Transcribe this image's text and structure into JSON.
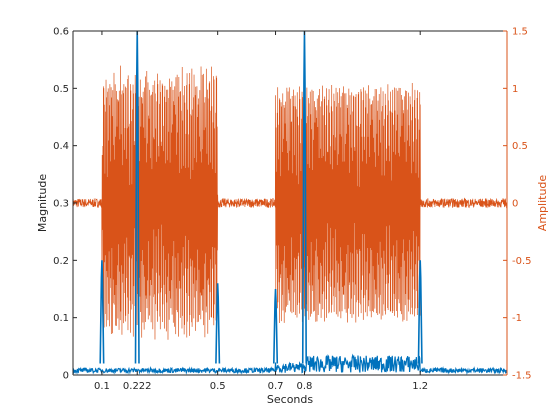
{
  "chart_data": {
    "type": "line",
    "title": "",
    "xlabel": "Seconds",
    "ylabel_left": "Magnitude",
    "ylabel_right": "Amplitude",
    "xlim": [
      0,
      1.5
    ],
    "ylim_left": [
      0,
      0.6
    ],
    "ylim_right": [
      -1.5,
      1.5
    ],
    "x_ticks": [
      0.1,
      0.222,
      0.5,
      0.7,
      0.8,
      1.2
    ],
    "x_tick_labels": [
      "0.1",
      "0.222",
      "0.5",
      "0.7",
      "0.8",
      "1.2"
    ],
    "y_left_ticks": [
      0,
      0.1,
      0.2,
      0.3,
      0.4,
      0.5,
      0.6
    ],
    "y_left_tick_labels": [
      "0",
      "0.1",
      "0.2",
      "0.3",
      "0.4",
      "0.5",
      "0.6"
    ],
    "y_right_ticks": [
      -1.5,
      -1,
      -0.5,
      0,
      0.5,
      1,
      1.5
    ],
    "y_right_tick_labels": [
      "-1.5",
      "-1",
      "-0.5",
      "0",
      "0.5",
      "1",
      "1.5"
    ],
    "grid": false,
    "legend": "none",
    "series": [
      {
        "axis": "left",
        "color": "#0072BD",
        "baseline_noise": 0.008,
        "burst_noise": {
          "0.7-0.8": 0.018,
          "0.8-1.2": 0.03
        },
        "spikes": [
          {
            "x": 0.1,
            "y": 0.2
          },
          {
            "x": 0.222,
            "y": 0.6
          },
          {
            "x": 0.5,
            "y": 0.16
          },
          {
            "x": 0.7,
            "y": 0.15
          },
          {
            "x": 0.8,
            "y": 0.6
          },
          {
            "x": 1.2,
            "y": 0.2
          }
        ]
      },
      {
        "axis": "right",
        "color": "#D95319",
        "baseline": 0,
        "baseline_noise": 0.04,
        "bursts": [
          {
            "x_start": 0.1,
            "x_end": 0.5,
            "amplitude_min": 1.0,
            "amplitude_max": 1.2
          },
          {
            "x_start": 0.7,
            "x_end": 1.2,
            "amplitude_min": 0.95,
            "amplitude_max": 1.05
          }
        ]
      }
    ]
  },
  "colors": {
    "left_axis": "#262626",
    "right_axis": "#D95319"
  }
}
